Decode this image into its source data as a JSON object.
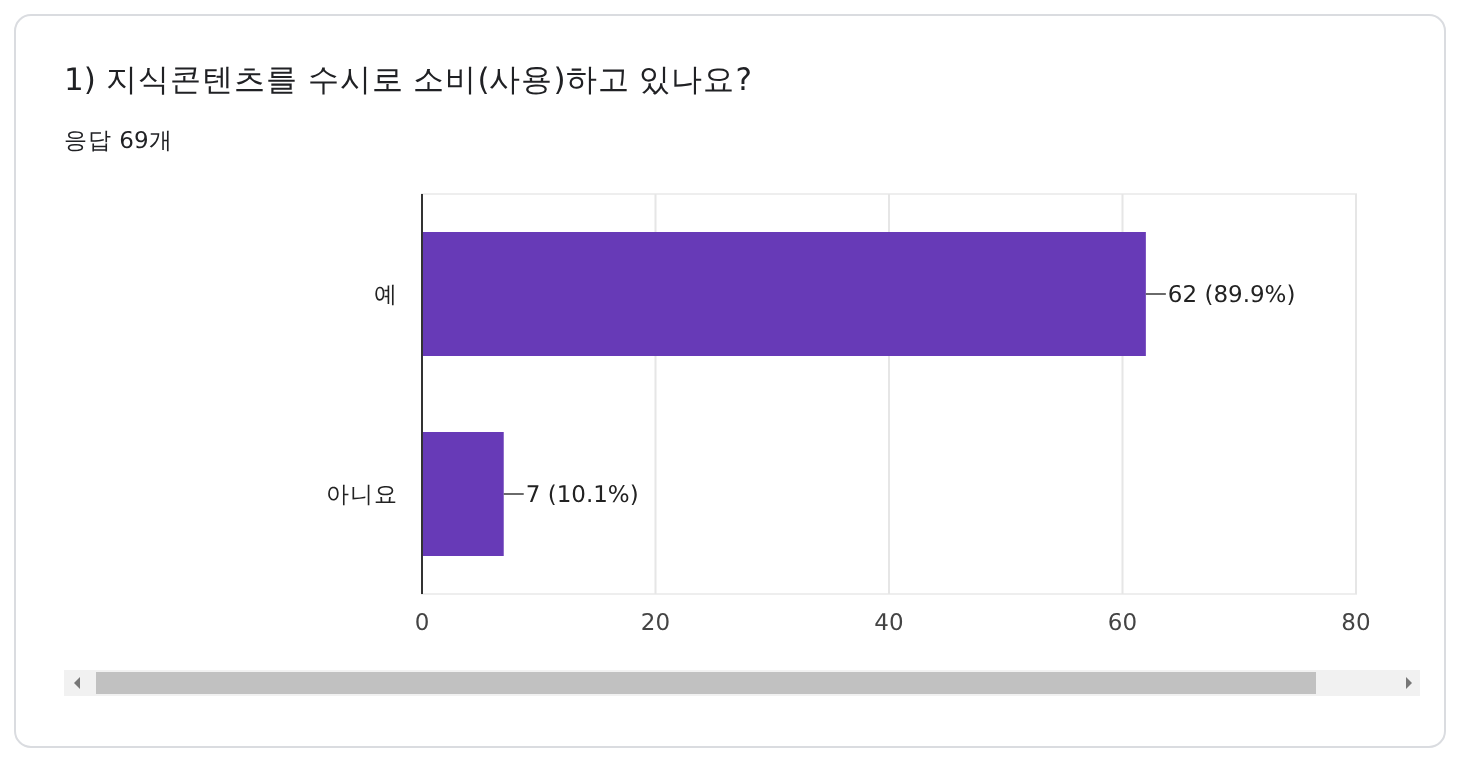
{
  "chart_data": {
    "type": "bar",
    "orientation": "horizontal",
    "title": "1) 지식콘텐츠를 수시로 소비(사용)하고 있나요?",
    "subtitle": "응답 69개",
    "categories": [
      "예",
      "아니요"
    ],
    "values": [
      62,
      7
    ],
    "color": "#673ab7",
    "value_labels": [
      "62 (89.9%)",
      "7 (10.1%)"
    ],
    "xlim": [
      0,
      80
    ],
    "xticks": [
      0,
      20,
      40,
      60,
      80
    ],
    "grid": "x"
  }
}
